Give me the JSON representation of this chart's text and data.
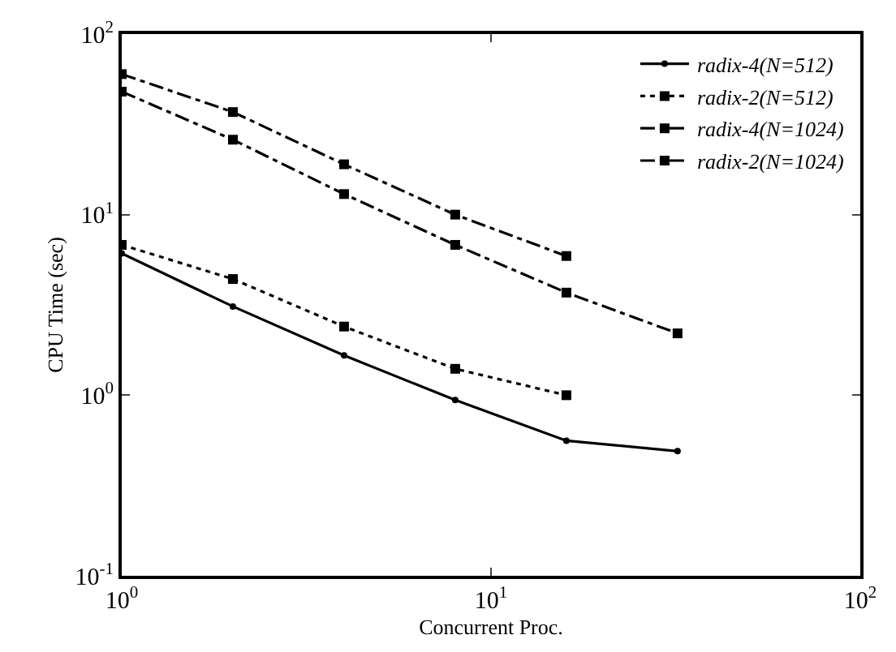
{
  "chart_data": {
    "type": "line",
    "xlabel": "Concurrent Proc.",
    "ylabel": "CPU Time (sec)",
    "log": "xy",
    "xlim": [
      1,
      100
    ],
    "ylim": [
      0.1,
      100
    ],
    "xticks": [
      {
        "value": 1,
        "label": "10$^{0}$"
      },
      {
        "value": 10,
        "label": "10$^{1}$"
      },
      {
        "value": 100,
        "label": "10$^{2}$"
      }
    ],
    "yticks": [
      {
        "value": 0.1,
        "label": "10$^{-1}$"
      },
      {
        "value": 1,
        "label": "10$^{0}$"
      },
      {
        "value": 10,
        "label": "10$^{1}$"
      },
      {
        "value": 100,
        "label": "10$^{2}$"
      }
    ],
    "grid": false,
    "legend": "top right",
    "series": [
      {
        "name": "radix-4(N=512)",
        "color": "#000000",
        "x": [
          1,
          2,
          4,
          8,
          16,
          32
        ],
        "values": [
          6.1,
          3.1,
          1.66,
          0.94,
          0.56,
          0.49
        ],
        "marker": "circle",
        "line_style": "solid"
      },
      {
        "name": "radix-2(N=512)",
        "color": "#000000",
        "x": [
          1,
          2,
          4,
          8,
          16
        ],
        "values": [
          6.8,
          4.4,
          2.4,
          1.4,
          1.0
        ],
        "marker": "square",
        "line_style": "dotted"
      },
      {
        "name": "radix-4(N=1024)",
        "color": "#000000",
        "x": [
          1,
          2,
          4,
          8,
          16,
          32
        ],
        "values": [
          48,
          26,
          13,
          6.8,
          3.7,
          2.2
        ],
        "marker": "square",
        "line_style": "dashed"
      },
      {
        "name": "radix-2(N=1024)",
        "color": "#000000",
        "x": [
          1,
          2,
          4,
          8,
          16
        ],
        "values": [
          60,
          37,
          19,
          10,
          5.9
        ],
        "marker": "square",
        "line_style": "dashed"
      }
    ]
  }
}
